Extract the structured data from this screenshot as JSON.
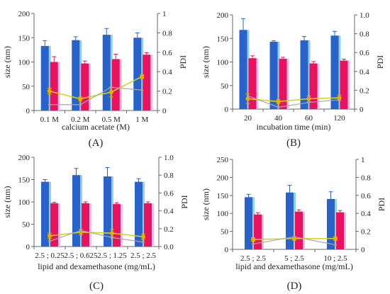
{
  "figure": {
    "panels": [
      "(A)",
      "(B)",
      "(C)",
      "(D)"
    ]
  },
  "colors": {
    "size_bar": "#2a62c8",
    "size_bar_edge": "#8ad0f0",
    "pdi_bar": "#e8135f",
    "pdi_bar_edge": "#f4b8ec",
    "pdi_line": "#d6d21a",
    "pdi_marker": "#e0b400",
    "secondary_line": "#a9a9a9",
    "axis": "#666666"
  },
  "chart_data": [
    {
      "panel_label": "(A)",
      "type": "bar",
      "xlabel": "calcium acetate (M)",
      "ylabel": "size (nm)",
      "y2label": "PDI",
      "categories": [
        "0.1 M",
        "0.2 M",
        "0.5 M",
        "1 M"
      ],
      "ylim": [
        0,
        200
      ],
      "yticks": [
        0,
        50,
        100,
        150,
        200
      ],
      "y2lim": [
        0,
        1
      ],
      "y2ticks": [
        "0",
        "0.2",
        "0.4",
        "0.6",
        "0.8",
        "1"
      ],
      "series": [
        {
          "kind": "bar",
          "axis": "y",
          "values": [
            133,
            145,
            156,
            150
          ],
          "errors": [
            11,
            7,
            13,
            10
          ]
        },
        {
          "kind": "bar",
          "axis": "y",
          "values": [
            100,
            97,
            106,
            115
          ],
          "errors": [
            11,
            5,
            10,
            4
          ]
        },
        {
          "kind": "line",
          "axis": "y2",
          "values": [
            0.2,
            0.12,
            0.19,
            0.35
          ],
          "errors": [
            0.03,
            0.02,
            0.05,
            0.02
          ]
        },
        {
          "kind": "line-gray",
          "axis": "y2",
          "values": [
            0.06,
            0.06,
            0.24,
            0.21
          ]
        }
      ],
      "grid": false
    },
    {
      "panel_label": "(B)",
      "type": "bar",
      "xlabel": "incubation time (min)",
      "ylabel": "size (nm)",
      "y2label": "PDI",
      "categories": [
        "20",
        "40",
        "60",
        "120"
      ],
      "ylim": [
        0,
        200
      ],
      "yticks": [
        0,
        50,
        100,
        150,
        200
      ],
      "y2lim": [
        0,
        1
      ],
      "y2ticks": [
        "0",
        "0.2",
        "0.4",
        "0.6",
        "0.8",
        "1.0"
      ],
      "series": [
        {
          "kind": "bar",
          "axis": "y",
          "values": [
            168,
            143,
            146,
            156
          ],
          "errors": [
            24,
            2,
            8,
            9
          ]
        },
        {
          "kind": "bar",
          "axis": "y",
          "values": [
            108,
            107,
            97,
            103
          ],
          "errors": [
            5,
            3,
            4,
            3
          ]
        },
        {
          "kind": "line",
          "axis": "y2",
          "values": [
            0.11,
            0.08,
            0.11,
            0.12
          ],
          "errors": [
            0.05,
            0.02,
            0.03,
            0.03
          ]
        },
        {
          "kind": "line-gray",
          "axis": "y2",
          "values": [
            0.14,
            0.02,
            0.07,
            0.1
          ]
        }
      ],
      "grid": false
    },
    {
      "panel_label": "(C)",
      "type": "bar",
      "xlabel": "lipid and dexamethasone (mg/mL)",
      "ylabel": "size (nm)",
      "y2label": "PDI",
      "categories": [
        "2.5 ; 0.25",
        "2.5 ; 0.625",
        "2.5 ; 1.25",
        "2.5 ; 2.5"
      ],
      "ylim": [
        0,
        200
      ],
      "yticks": [
        0,
        50,
        100,
        150,
        200
      ],
      "y2lim": [
        0,
        1
      ],
      "y2ticks": [
        "0.0",
        "0.2",
        "0.4",
        "0.6",
        "0.8",
        "1.0"
      ],
      "series": [
        {
          "kind": "bar",
          "axis": "y",
          "values": [
            145,
            160,
            157,
            145
          ],
          "errors": [
            5,
            15,
            20,
            7
          ]
        },
        {
          "kind": "bar",
          "axis": "y",
          "values": [
            97,
            97,
            95,
            97
          ],
          "errors": [
            2,
            3,
            3,
            3
          ]
        },
        {
          "kind": "line",
          "axis": "y2",
          "values": [
            0.12,
            0.16,
            0.15,
            0.11
          ],
          "errors": [
            0.03,
            0.03,
            0.04,
            0.03
          ]
        },
        {
          "kind": "line-gray",
          "axis": "y2",
          "values": [
            0.06,
            0.18,
            0.1,
            0.05
          ]
        }
      ],
      "grid": false
    },
    {
      "panel_label": "(D)",
      "type": "bar",
      "xlabel": "lipid and dexamethasone (mg/mL)",
      "ylabel": "size (nm)",
      "y2label": "PDI",
      "categories": [
        "2.5 ; 2.5",
        "5 ; 2.5",
        "10 ; 2.5"
      ],
      "ylim": [
        0,
        250
      ],
      "yticks": [
        0,
        50,
        100,
        150,
        200,
        250
      ],
      "y2lim": [
        0,
        1
      ],
      "y2ticks": [
        "0",
        "0.2",
        "0.4",
        "0.6",
        "0.8",
        "1"
      ],
      "series": [
        {
          "kind": "bar",
          "axis": "y",
          "values": [
            145,
            158,
            140
          ],
          "errors": [
            8,
            20,
            20
          ]
        },
        {
          "kind": "bar",
          "axis": "y",
          "values": [
            97,
            105,
            103
          ],
          "errors": [
            5,
            5,
            5
          ]
        },
        {
          "kind": "line",
          "axis": "y2",
          "values": [
            0.11,
            0.12,
            0.12
          ],
          "errors": [
            0.02,
            0.02,
            0.02
          ]
        },
        {
          "kind": "line-gray",
          "axis": "y2",
          "values": [
            0.06,
            0.14,
            0.05
          ]
        }
      ],
      "grid": false
    }
  ]
}
